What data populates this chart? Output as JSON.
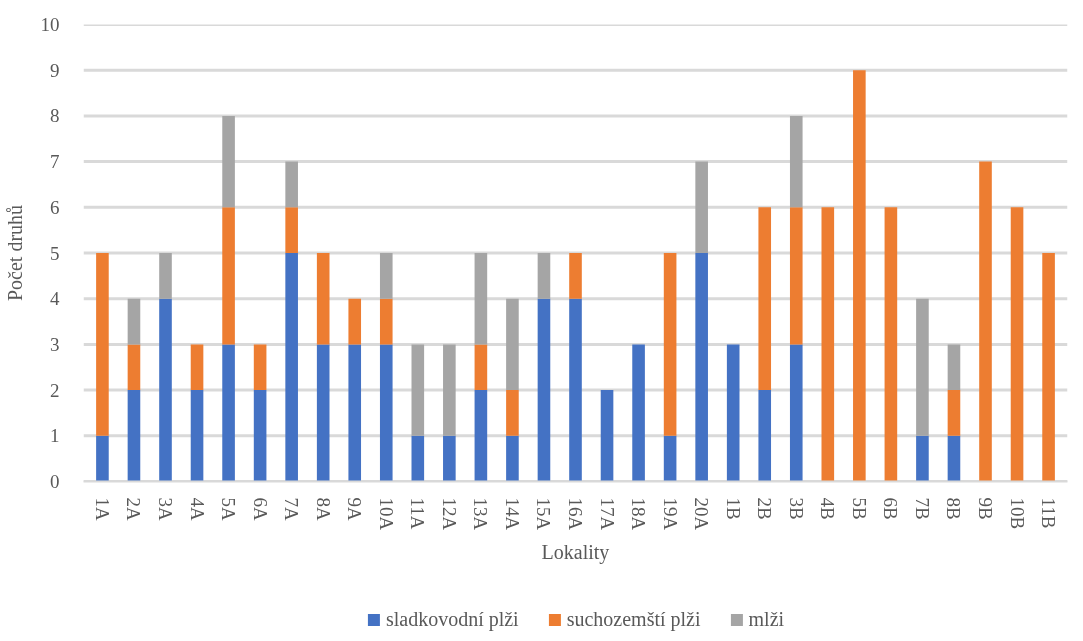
{
  "chart_data": {
    "type": "bar",
    "stacked": true,
    "xlabel": "Lokality",
    "ylabel": "Počet druhů",
    "categories": [
      "1A",
      "2A",
      "3A",
      "4A",
      "5A",
      "6A",
      "7A",
      "8A",
      "9A",
      "10A",
      "11A",
      "12A",
      "13A",
      "14A",
      "15A",
      "16A",
      "17A",
      "18A",
      "19A",
      "20A",
      "1B",
      "2B",
      "3B",
      "4B",
      "5B",
      "6B",
      "7B",
      "8B",
      "9B",
      "10B",
      "11B"
    ],
    "series": [
      {
        "name": "sladkovodní plži",
        "color": "#4472c4",
        "values": [
          1,
          2,
          4,
          2,
          3,
          2,
          5,
          3,
          3,
          3,
          1,
          1,
          2,
          1,
          4,
          4,
          2,
          3,
          1,
          5,
          3,
          2,
          3,
          null,
          null,
          null,
          1,
          1,
          null,
          null,
          null
        ]
      },
      {
        "name": "suchozemští plži",
        "color": "#ed7d31",
        "values": [
          4,
          1,
          null,
          1,
          3,
          1,
          1,
          2,
          1,
          1,
          null,
          null,
          1,
          1,
          null,
          1,
          null,
          null,
          4,
          null,
          null,
          4,
          3,
          6,
          9,
          6,
          null,
          1,
          7,
          6,
          5
        ]
      },
      {
        "name": "mlži",
        "color": "#a5a5a5",
        "values": [
          null,
          1,
          1,
          null,
          2,
          null,
          1,
          null,
          null,
          1,
          2,
          2,
          2,
          2,
          1,
          null,
          null,
          null,
          null,
          2,
          null,
          null,
          2,
          null,
          null,
          null,
          3,
          1,
          null,
          null,
          null
        ]
      }
    ],
    "ylim": [
      0,
      10
    ],
    "yticks": [
      0,
      1,
      2,
      3,
      4,
      5,
      6,
      7,
      8,
      9,
      10
    ],
    "grid": "y",
    "legend": "bottom"
  }
}
